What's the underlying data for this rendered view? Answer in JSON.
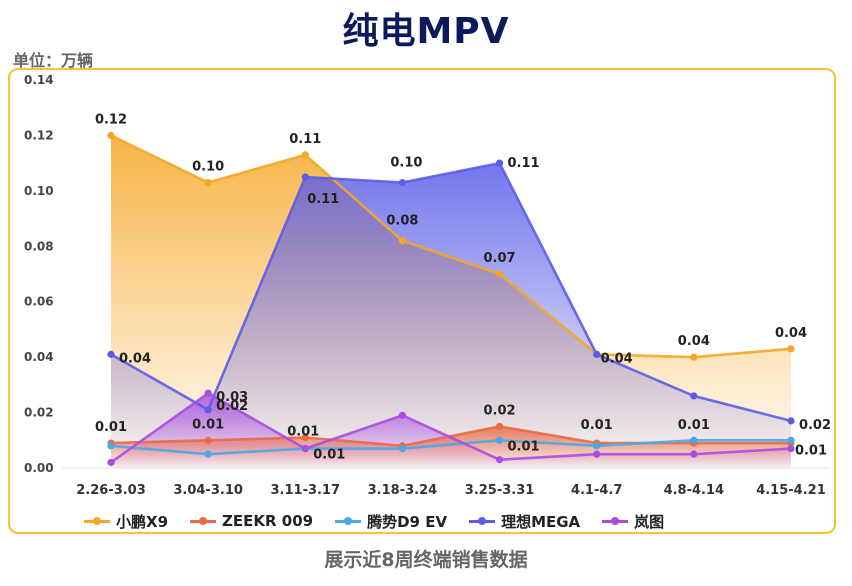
{
  "page": {
    "title": "纯电MPV",
    "unit_label": "单位：万辆",
    "footer": "展示近8周终端销售数据"
  },
  "chart_data": {
    "type": "line",
    "title": "纯电MPV",
    "ylabel": "单位：万辆",
    "ylim": [
      0,
      0.14
    ],
    "yticks": [
      "0.00",
      "0.02",
      "0.04",
      "0.06",
      "0.08",
      "0.10",
      "0.12",
      "0.14"
    ],
    "categories": [
      "2.26-3.03",
      "3.04-3.10",
      "3.11-3.17",
      "3.18-3.24",
      "3.25-3.31",
      "4.1-4.7",
      "4.8-4.14",
      "4.15-4.21"
    ],
    "series": [
      {
        "name": "小鹏X9",
        "color": "#f5a623",
        "fill": true,
        "values": [
          0.12,
          0.103,
          0.113,
          0.082,
          0.07,
          0.041,
          0.04,
          0.043
        ],
        "labels": [
          "0.12",
          "0.10",
          "0.11",
          "0.08",
          "0.07",
          "0.04",
          "0.04",
          "0.04"
        ]
      },
      {
        "name": "ZEEKR 009",
        "color": "#ea6a47",
        "fill": true,
        "values": [
          0.009,
          0.01,
          0.011,
          0.008,
          0.015,
          0.009,
          0.009,
          0.009
        ],
        "labels": [
          "0.01",
          "0.01",
          "0.01",
          "",
          "0.02",
          "0.01",
          "0.01",
          ""
        ]
      },
      {
        "name": "腾势D9 EV",
        "color": "#4aa8e6",
        "fill": false,
        "values": [
          0.008,
          0.005,
          0.007,
          0.007,
          0.01,
          0.008,
          0.01,
          0.01
        ],
        "labels": [
          "",
          "",
          "0.01",
          "",
          "0.01",
          "",
          "",
          "0.01"
        ]
      },
      {
        "name": "理想MEGA",
        "color": "#5b5de8",
        "fill": true,
        "values": [
          0.041,
          0.021,
          0.105,
          0.103,
          0.11,
          0.041,
          0.026,
          0.017
        ],
        "labels": [
          "0.04",
          "0.02",
          "0.11",
          "0.10",
          "0.11",
          "",
          "",
          "0.02"
        ]
      },
      {
        "name": "岚图",
        "color": "#a84ee0",
        "fill": true,
        "values": [
          0.002,
          0.027,
          0.007,
          0.019,
          0.003,
          0.005,
          0.005,
          0.007
        ],
        "labels": [
          "",
          "0.03",
          "",
          "",
          "",
          "",
          "",
          ""
        ]
      }
    ]
  }
}
